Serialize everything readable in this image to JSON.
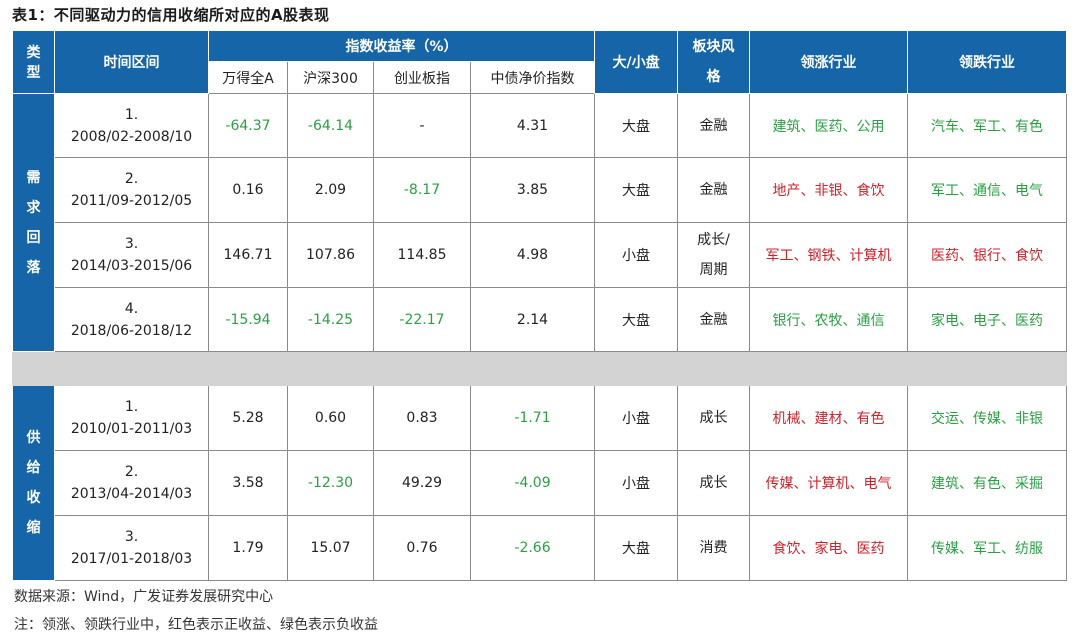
{
  "title": "表1：不同驱动力的信用收缩所对应的A股表现",
  "header": {
    "type": "类型",
    "type_chars": [
      "类",
      "型"
    ],
    "period": "时间区间",
    "returns_group": "指数收益率（%）",
    "columns": [
      "万得全A",
      "沪深300",
      "创业板指",
      "中债净价指数"
    ],
    "size": "大/小盘",
    "style_lines": [
      "板块风",
      "格"
    ],
    "leading": "领涨行业",
    "lagging": "领跌行业"
  },
  "colors": {
    "header_bg": "#1565a8",
    "positive": "#d0202a",
    "negative": "#2aa043",
    "separator": "#d3d3d3"
  },
  "groups": [
    {
      "label_chars": [
        "需",
        "求",
        "回",
        "落"
      ],
      "rows": [
        {
          "num": "1.",
          "range": "2008/02-2008/10",
          "wind": "-64.37",
          "hs300": "-64.14",
          "gem": "-",
          "bond": "4.31",
          "size": "大盘",
          "style": [
            "金融"
          ],
          "lead": "建筑、医药、公用",
          "lag": "汽车、军工、有色",
          "wind_neg": true,
          "hs300_neg": true,
          "gem_neg": false,
          "bond_neg": false,
          "lead_pos": false
        },
        {
          "num": "2.",
          "range": "2011/09-2012/05",
          "wind": "0.16",
          "hs300": "2.09",
          "gem": "-8.17",
          "bond": "3.85",
          "size": "大盘",
          "style": [
            "金融"
          ],
          "lead": "地产、非银、食饮",
          "lag": "军工、通信、电气",
          "wind_neg": false,
          "hs300_neg": false,
          "gem_neg": true,
          "bond_neg": false,
          "lead_pos": true
        },
        {
          "num": "3.",
          "range": "2014/03-2015/06",
          "wind": "146.71",
          "hs300": "107.86",
          "gem": "114.85",
          "bond": "4.98",
          "size": "小盘",
          "style": [
            "成长/",
            "周期"
          ],
          "lead": "军工、钢铁、计算机",
          "lag": "医药、银行、食饮",
          "wind_neg": false,
          "hs300_neg": false,
          "gem_neg": false,
          "bond_neg": false,
          "lead_pos": true,
          "lag_red": true
        },
        {
          "num": "4.",
          "range": "2018/06-2018/12",
          "wind": "-15.94",
          "hs300": "-14.25",
          "gem": "-22.17",
          "bond": "2.14",
          "size": "大盘",
          "style": [
            "金融"
          ],
          "lead": "银行、农牧、通信",
          "lag": "家电、电子、医药",
          "wind_neg": true,
          "hs300_neg": true,
          "gem_neg": true,
          "bond_neg": false,
          "lead_pos": false
        }
      ]
    },
    {
      "label_chars": [
        "供",
        "给",
        "收",
        "缩"
      ],
      "rows": [
        {
          "num": "1.",
          "range": "2010/01-2011/03",
          "wind": "5.28",
          "hs300": "0.60",
          "gem": "0.83",
          "bond": "-1.71",
          "size": "小盘",
          "style": [
            "成长"
          ],
          "lead": "机械、建材、有色",
          "lag": "交运、传媒、非银",
          "wind_neg": false,
          "hs300_neg": false,
          "gem_neg": false,
          "bond_neg": true,
          "lead_pos": true
        },
        {
          "num": "2.",
          "range": "2013/04-2014/03",
          "wind": "3.58",
          "hs300": "-12.30",
          "gem": "49.29",
          "bond": "-4.09",
          "size": "小盘",
          "style": [
            "成长"
          ],
          "lead": "传媒、计算机、电气",
          "lag": "建筑、有色、采掘",
          "wind_neg": false,
          "hs300_neg": true,
          "gem_neg": false,
          "bond_neg": true,
          "lead_pos": true
        },
        {
          "num": "3.",
          "range": "2017/01-2018/03",
          "wind": "1.79",
          "hs300": "15.07",
          "gem": "0.76",
          "bond": "-2.66",
          "size": "大盘",
          "style": [
            "消费"
          ],
          "lead": "食饮、家电、医药",
          "lag": "传媒、军工、纺服",
          "wind_neg": false,
          "hs300_neg": false,
          "gem_neg": false,
          "bond_neg": true,
          "lead_pos": true
        }
      ]
    }
  ],
  "footer": {
    "source": "数据来源：Wind，广发证券发展研究中心",
    "note": "注：领涨、领跌行业中，红色表示正收益、绿色表示负收益"
  }
}
